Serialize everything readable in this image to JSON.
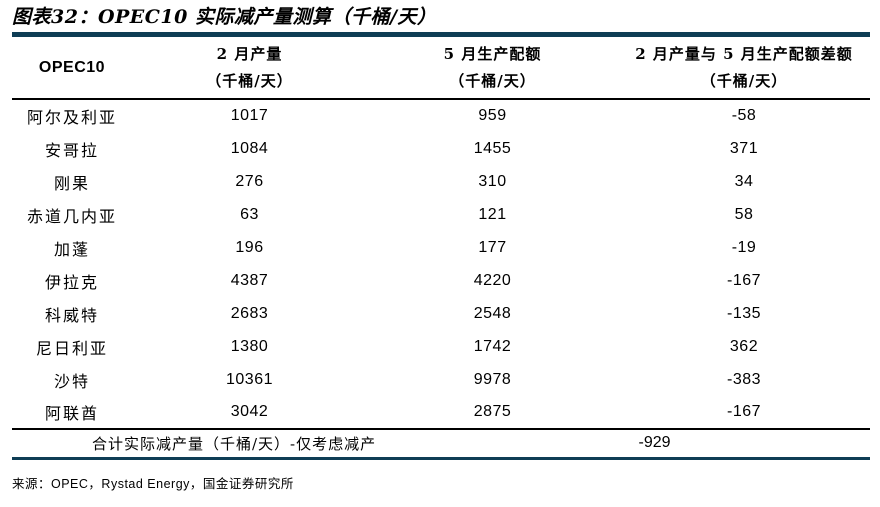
{
  "figure": {
    "title": "图表32：OPEC10 实际减产量测算（千桶/天）",
    "source": "来源：OPEC，Rystad Energy，国金证券研究所"
  },
  "table": {
    "corner": "OPEC10",
    "col_feb": {
      "l1": "2 月产量",
      "l2": "（千桶/天）"
    },
    "col_may": {
      "l1": "5 月生产配额",
      "l2": "（千桶/天）"
    },
    "col_diff": {
      "l1": "2 月产量与 5 月生产配额差额",
      "l2": "（千桶/天）"
    },
    "total_label": "合计实际减产量（千桶/天）-仅考虑减产",
    "total_value": "-929"
  },
  "chart_data": {
    "type": "table",
    "title": "图表32：OPEC10 实际减产量测算（千桶/天）",
    "unit": "千桶/天",
    "columns": [
      "OPEC10",
      "2 月产量（千桶/天）",
      "5 月生产配额（千桶/天）",
      "2 月产量与 5 月生产配额差额（千桶/天）"
    ],
    "rows": [
      [
        "阿尔及利亚",
        "1017",
        "959",
        "-58"
      ],
      [
        "安哥拉",
        "1084",
        "1455",
        "371"
      ],
      [
        "刚果",
        "276",
        "310",
        "34"
      ],
      [
        "赤道几内亚",
        "63",
        "121",
        "58"
      ],
      [
        "加蓬",
        "196",
        "177",
        "-19"
      ],
      [
        "伊拉克",
        "4387",
        "4220",
        "-167"
      ],
      [
        "科威特",
        "2683",
        "2548",
        "-135"
      ],
      [
        "尼日利亚",
        "1380",
        "1742",
        "362"
      ],
      [
        "沙特",
        "10361",
        "9978",
        "-383"
      ],
      [
        "阿联酋",
        "3042",
        "2875",
        "-167"
      ]
    ],
    "total": {
      "label": "合计实际减产量（千桶/天）-仅考虑减产",
      "value": -929
    },
    "source": "OPEC，Rystad Energy，国金证券研究所"
  },
  "colors": {
    "accent_rule": "#0e3d55",
    "text": "#000000",
    "background": "#ffffff"
  }
}
